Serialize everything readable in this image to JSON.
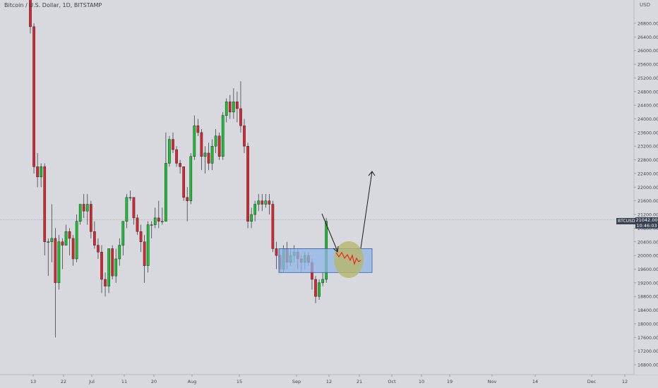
{
  "window": {
    "title": "Bitcoin / U.S. Dollar, 1D, BITSTAMP"
  },
  "price_axis": {
    "currency_label": "USD",
    "tick_labels": [
      "26800.00",
      "26400.00",
      "26000.00",
      "25600.00",
      "25200.00",
      "24800.00",
      "24400.00",
      "24000.00",
      "23600.00",
      "23200.00",
      "22800.00",
      "22400.00",
      "22000.00",
      "21600.00",
      "21200.00",
      "20800.00",
      "20400.00",
      "20000.00",
      "19600.00",
      "19200.00",
      "18800.00",
      "18400.00",
      "18000.00",
      "17600.00",
      "17200.00",
      "16800.00"
    ]
  },
  "time_axis": {
    "tick_labels": [
      "13",
      "22",
      "Jul",
      "11",
      "20",
      "Aug",
      "15",
      "Sep",
      "12",
      "21",
      "Oct",
      "10",
      "19",
      "Nov",
      "14",
      "Dec",
      "12"
    ]
  },
  "last_price": {
    "symbol": "BTCUSD",
    "value": "21042.00",
    "countdown": "10:46:03"
  },
  "colors": {
    "background": "#d7d9de",
    "up": "#16c42b",
    "down": "#e0242b",
    "zone_fill": "#8fb6e6",
    "zone_stroke": "#2f5fb0",
    "circle_fill": "#b8b66a",
    "projection": "#f21818",
    "arrow": "#1b1b1b",
    "price_line": "#9aa1ad"
  },
  "chart_data": {
    "type": "candlestick",
    "symbol": "BTCUSD",
    "exchange": "BITSTAMP",
    "interval": "1D",
    "y_range": [
      16500,
      27200
    ],
    "last_price": 21042.0,
    "candles": [
      {
        "o": 28400,
        "h": 28500,
        "c": 26700,
        "l": 26500
      },
      {
        "o": 26700,
        "h": 26800,
        "c": 22600,
        "l": 22400
      },
      {
        "o": 22600,
        "h": 23000,
        "c": 22300,
        "l": 22000
      },
      {
        "o": 22300,
        "h": 22700,
        "c": 22600,
        "l": 22000
      },
      {
        "o": 22600,
        "h": 22700,
        "c": 20400,
        "l": 20000
      },
      {
        "o": 20400,
        "h": 20500,
        "c": 20400,
        "l": 19400
      },
      {
        "o": 20400,
        "h": 21500,
        "c": 20500,
        "l": 19800
      },
      {
        "o": 20500,
        "h": 20800,
        "c": 19200,
        "l": 17600
      },
      {
        "o": 19200,
        "h": 20600,
        "c": 20400,
        "l": 19000
      },
      {
        "o": 20400,
        "h": 20500,
        "c": 20300,
        "l": 19600
      },
      {
        "o": 20300,
        "h": 20900,
        "c": 20700,
        "l": 20300
      },
      {
        "o": 20700,
        "h": 20800,
        "c": 20500,
        "l": 20000
      },
      {
        "o": 20500,
        "h": 20600,
        "c": 19900,
        "l": 19700
      },
      {
        "o": 19900,
        "h": 21200,
        "c": 21000,
        "l": 19800
      },
      {
        "o": 21000,
        "h": 21500,
        "c": 21500,
        "l": 20900
      },
      {
        "o": 21500,
        "h": 21800,
        "c": 21300,
        "l": 21100
      },
      {
        "o": 21300,
        "h": 21800,
        "c": 21500,
        "l": 20900
      },
      {
        "o": 21500,
        "h": 21600,
        "c": 20700,
        "l": 20500
      },
      {
        "o": 20700,
        "h": 21000,
        "c": 20300,
        "l": 20200
      },
      {
        "o": 20300,
        "h": 20500,
        "c": 20100,
        "l": 19900
      },
      {
        "o": 20100,
        "h": 20300,
        "c": 19300,
        "l": 18900
      },
      {
        "o": 19300,
        "h": 19500,
        "c": 19100,
        "l": 18800
      },
      {
        "o": 19100,
        "h": 20200,
        "c": 20200,
        "l": 18900
      },
      {
        "o": 20200,
        "h": 20300,
        "c": 19400,
        "l": 19300
      },
      {
        "o": 19400,
        "h": 20200,
        "c": 19900,
        "l": 19200
      },
      {
        "o": 19900,
        "h": 20500,
        "c": 20300,
        "l": 19700
      },
      {
        "o": 20300,
        "h": 21000,
        "c": 21000,
        "l": 20000
      },
      {
        "o": 21000,
        "h": 21800,
        "c": 21700,
        "l": 20800
      },
      {
        "o": 21700,
        "h": 21900,
        "c": 21700,
        "l": 21600
      },
      {
        "o": 21700,
        "h": 21700,
        "c": 21100,
        "l": 20900
      },
      {
        "o": 21100,
        "h": 21200,
        "c": 20700,
        "l": 20600
      },
      {
        "o": 20700,
        "h": 20900,
        "c": 20400,
        "l": 20100
      },
      {
        "o": 20400,
        "h": 20600,
        "c": 19700,
        "l": 19200
      },
      {
        "o": 19700,
        "h": 21000,
        "c": 20900,
        "l": 19500
      },
      {
        "o": 20900,
        "h": 21000,
        "c": 20900,
        "l": 20500
      },
      {
        "o": 20900,
        "h": 21400,
        "c": 21100,
        "l": 20800
      },
      {
        "o": 21100,
        "h": 21600,
        "c": 21000,
        "l": 20800
      },
      {
        "o": 21000,
        "h": 21400,
        "c": 21000,
        "l": 20900
      },
      {
        "o": 21000,
        "h": 23600,
        "c": 22700,
        "l": 21000
      },
      {
        "o": 22700,
        "h": 23500,
        "c": 23400,
        "l": 22600
      },
      {
        "o": 23400,
        "h": 23600,
        "c": 23100,
        "l": 23000
      },
      {
        "o": 23100,
        "h": 23200,
        "c": 22700,
        "l": 22600
      },
      {
        "o": 22700,
        "h": 22800,
        "c": 22600,
        "l": 22400
      },
      {
        "o": 22600,
        "h": 22600,
        "c": 21700,
        "l": 21600
      },
      {
        "o": 21700,
        "h": 22000,
        "c": 21600,
        "l": 21000
      },
      {
        "o": 21600,
        "h": 23000,
        "c": 22900,
        "l": 21500
      },
      {
        "o": 22900,
        "h": 24100,
        "c": 23800,
        "l": 22800
      },
      {
        "o": 23800,
        "h": 24000,
        "c": 23600,
        "l": 23500
      },
      {
        "o": 23600,
        "h": 23700,
        "c": 22900,
        "l": 22500
      },
      {
        "o": 22900,
        "h": 23200,
        "c": 23000,
        "l": 22400
      },
      {
        "o": 23000,
        "h": 23300,
        "c": 22700,
        "l": 22500
      },
      {
        "o": 22700,
        "h": 23400,
        "c": 23200,
        "l": 22500
      },
      {
        "o": 23200,
        "h": 23700,
        "c": 23500,
        "l": 23000
      },
      {
        "o": 23500,
        "h": 23600,
        "c": 22900,
        "l": 22800
      },
      {
        "o": 22900,
        "h": 24200,
        "c": 24100,
        "l": 22800
      },
      {
        "o": 24100,
        "h": 24600,
        "c": 24500,
        "l": 23900
      },
      {
        "o": 24500,
        "h": 24700,
        "c": 24200,
        "l": 24000
      },
      {
        "o": 24200,
        "h": 24900,
        "c": 24500,
        "l": 24000
      },
      {
        "o": 24500,
        "h": 24800,
        "c": 24300,
        "l": 23900
      },
      {
        "o": 24300,
        "h": 25100,
        "c": 23800,
        "l": 23600
      },
      {
        "o": 23800,
        "h": 24000,
        "c": 23200,
        "l": 23000
      },
      {
        "o": 23200,
        "h": 23300,
        "c": 21000,
        "l": 20800
      },
      {
        "o": 21000,
        "h": 21400,
        "c": 21200,
        "l": 20800
      },
      {
        "o": 21200,
        "h": 21600,
        "c": 21500,
        "l": 21000
      },
      {
        "o": 21500,
        "h": 21800,
        "c": 21600,
        "l": 21300
      },
      {
        "o": 21600,
        "h": 21800,
        "c": 21500,
        "l": 21300
      },
      {
        "o": 21500,
        "h": 21800,
        "c": 21600,
        "l": 21400
      },
      {
        "o": 21600,
        "h": 21800,
        "c": 21500,
        "l": 21200
      },
      {
        "o": 21500,
        "h": 21600,
        "c": 20200,
        "l": 20100
      },
      {
        "o": 20200,
        "h": 20400,
        "c": 20000,
        "l": 19600
      },
      {
        "o": 20000,
        "h": 20200,
        "c": 19600,
        "l": 19500
      },
      {
        "o": 19600,
        "h": 20300,
        "c": 20200,
        "l": 19500
      },
      {
        "o": 20200,
        "h": 20400,
        "c": 19800,
        "l": 19600
      },
      {
        "o": 19800,
        "h": 20200,
        "c": 20000,
        "l": 19700
      },
      {
        "o": 20000,
        "h": 20300,
        "c": 20100,
        "l": 19800
      },
      {
        "o": 20100,
        "h": 20200,
        "c": 19900,
        "l": 19600
      },
      {
        "o": 19900,
        "h": 20000,
        "c": 19800,
        "l": 19500
      },
      {
        "o": 19800,
        "h": 20100,
        "c": 20000,
        "l": 19600
      },
      {
        "o": 20000,
        "h": 20100,
        "c": 19800,
        "l": 19700
      },
      {
        "o": 19800,
        "h": 19900,
        "c": 19300,
        "l": 19000
      },
      {
        "o": 19300,
        "h": 19400,
        "c": 18800,
        "l": 18600
      },
      {
        "o": 18800,
        "h": 19300,
        "c": 19200,
        "l": 18700
      },
      {
        "o": 19200,
        "h": 19500,
        "c": 19300,
        "l": 19100
      },
      {
        "o": 19300,
        "h": 21100,
        "c": 21000,
        "l": 19200
      }
    ],
    "annotations": [
      {
        "type": "rectangle",
        "label": "support-zone",
        "price_top": 20200,
        "price_bottom": 19500
      },
      {
        "type": "ellipse",
        "label": "target-consolidation"
      },
      {
        "type": "projection-line",
        "label": "expected-path"
      },
      {
        "type": "arrow",
        "label": "upside-arrow"
      }
    ]
  }
}
